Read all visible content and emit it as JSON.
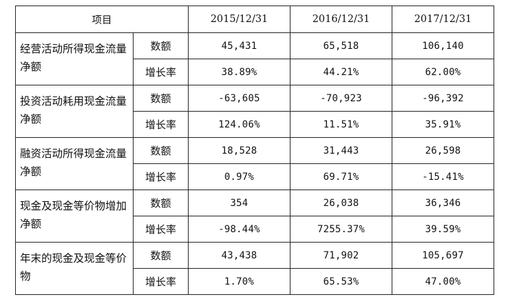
{
  "table": {
    "header": {
      "item_label": "项目",
      "years": [
        "2015/12/31",
        "2016/12/31",
        "2017/12/31"
      ]
    },
    "groups": [
      {
        "name": "经营活动所得现金流量净额",
        "rows": [
          {
            "metric": "数额",
            "values": [
              "45,431",
              "65,518",
              "106,140"
            ]
          },
          {
            "metric": "增长率",
            "values": [
              "38.89%",
              "44.21%",
              "62.00%"
            ]
          }
        ]
      },
      {
        "name": "投资活动耗用现金流量净额",
        "rows": [
          {
            "metric": "数额",
            "values": [
              "-63,605",
              "-70,923",
              "-96,392"
            ]
          },
          {
            "metric": "增长率",
            "values": [
              "124.06%",
              "11.51%",
              "35.91%"
            ]
          }
        ]
      },
      {
        "name": "融资活动所得现金流量净额",
        "rows": [
          {
            "metric": "数额",
            "values": [
              "18,528",
              "31,443",
              "26,598"
            ]
          },
          {
            "metric": "增长率",
            "values": [
              "0.97%",
              "69.71%",
              "-15.41%"
            ]
          }
        ]
      },
      {
        "name": "现金及现金等价物增加净额",
        "rows": [
          {
            "metric": "数额",
            "values": [
              "354",
              "26,038",
              "36,346"
            ]
          },
          {
            "metric": "增长率",
            "values": [
              "-98.44%",
              "7255.37%",
              "39.59%"
            ]
          }
        ]
      },
      {
        "name": "年末的现金及现金等价物",
        "rows": [
          {
            "metric": "数额",
            "values": [
              "43,438",
              "71,902",
              "105,697"
            ]
          },
          {
            "metric": "增长率",
            "values": [
              "1.70%",
              "65.53%",
              "47.00%"
            ]
          }
        ]
      }
    ]
  }
}
